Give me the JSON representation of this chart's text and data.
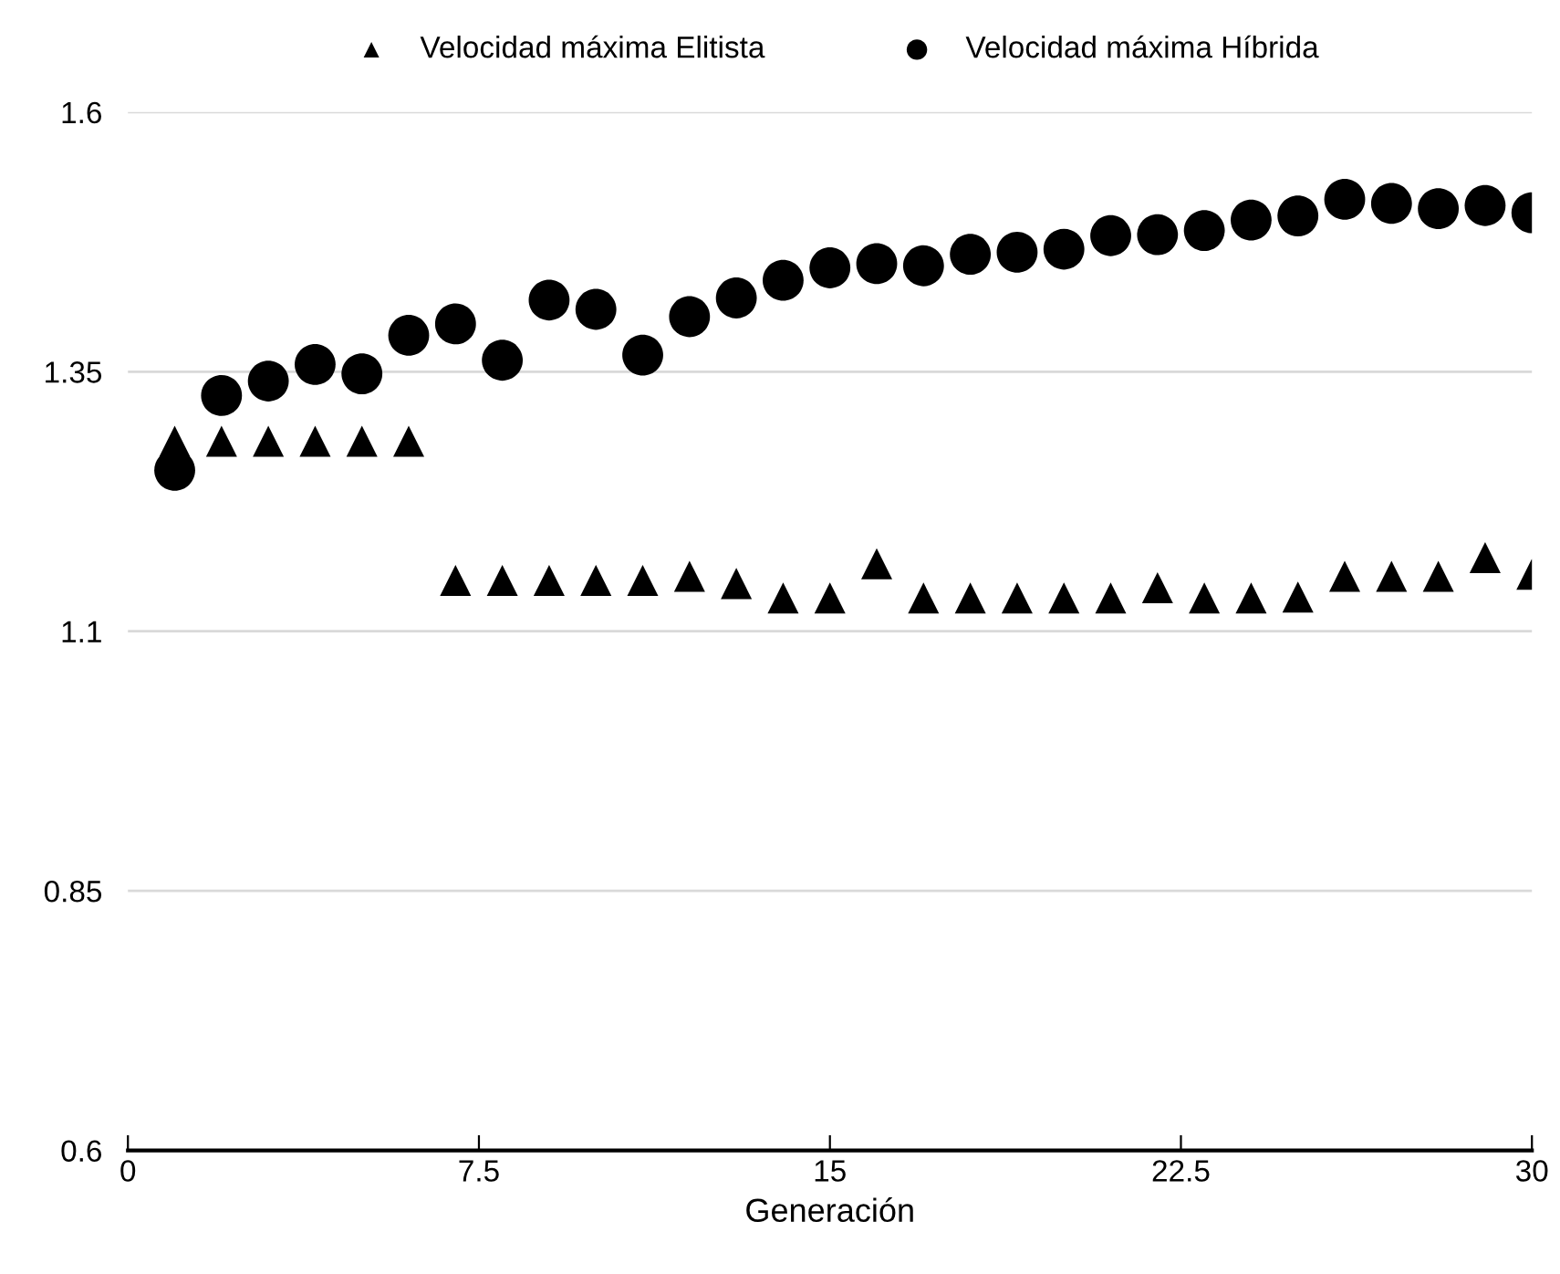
{
  "chart_data": {
    "type": "scatter",
    "xlabel": "Generación",
    "x": [
      1,
      2,
      3,
      4,
      5,
      6,
      7,
      8,
      9,
      10,
      11,
      12,
      13,
      14,
      15,
      16,
      17,
      18,
      19,
      20,
      21,
      22,
      23,
      24,
      25,
      26,
      27,
      28,
      29,
      30
    ],
    "series": [
      {
        "name": "Velocidad máxima Elitista",
        "color": "#000000",
        "marker": "triangle",
        "values": [
          1.283,
          1.283,
          1.283,
          1.283,
          1.283,
          1.283,
          1.149,
          1.149,
          1.149,
          1.149,
          1.149,
          1.153,
          1.146,
          1.132,
          1.132,
          1.165,
          1.132,
          1.132,
          1.132,
          1.132,
          1.132,
          1.142,
          1.132,
          1.132,
          1.133,
          1.153,
          1.153,
          1.153,
          1.171,
          1.155
        ]
      },
      {
        "name": "Velocidad máxima Híbrida",
        "color": "#000000",
        "marker": "circle",
        "values": [
          1.255,
          1.327,
          1.341,
          1.357,
          1.348,
          1.385,
          1.396,
          1.361,
          1.419,
          1.41,
          1.366,
          1.403,
          1.421,
          1.438,
          1.45,
          1.454,
          1.452,
          1.463,
          1.465,
          1.468,
          1.481,
          1.482,
          1.486,
          1.496,
          1.5,
          1.516,
          1.512,
          1.507,
          1.51,
          1.503
        ]
      }
    ],
    "xlim": [
      0,
      30
    ],
    "xticks": [
      0,
      7.5,
      15,
      22.5,
      30
    ],
    "ylim": [
      0.6,
      1.6
    ],
    "yticks": [
      0.6,
      0.85,
      1.1,
      1.35,
      1.6
    ],
    "grid": "y",
    "legend": "top"
  }
}
